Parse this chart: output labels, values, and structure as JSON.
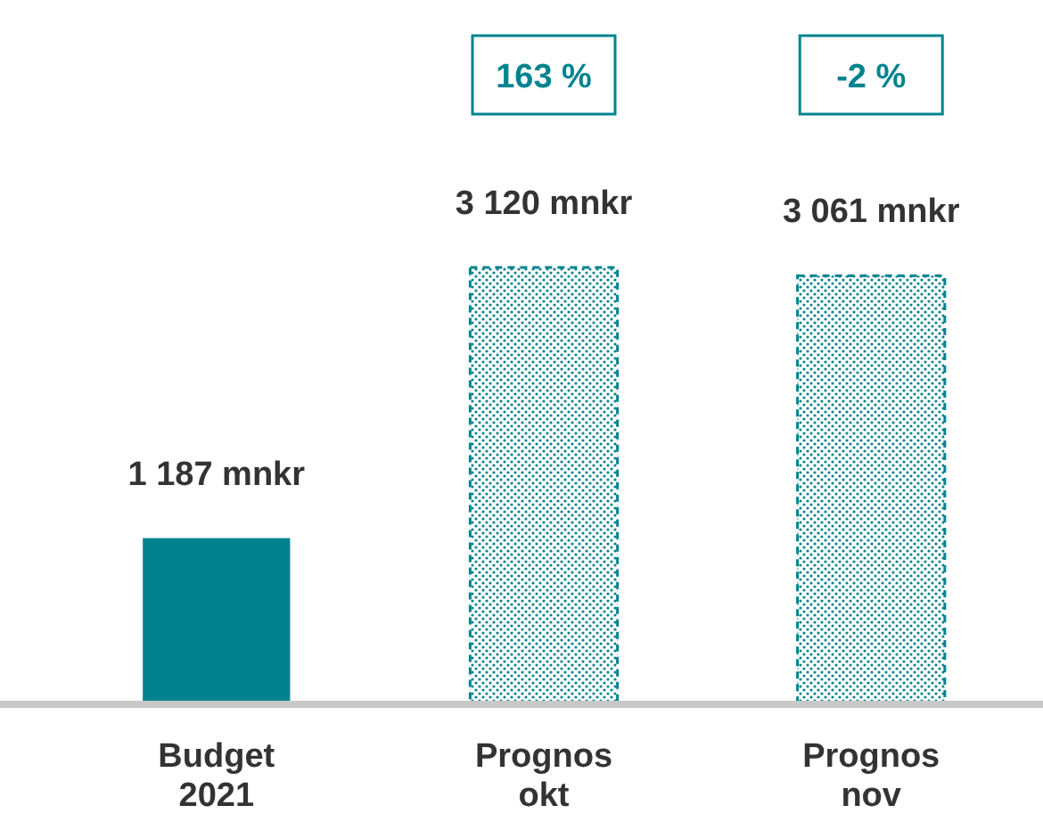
{
  "chart_data": {
    "type": "bar",
    "stacked": true,
    "categories": [
      "Budget 2021",
      "Prognos okt",
      "Prognos nov"
    ],
    "series": [
      {
        "color": "#00838f",
        "values": [
          1187,
          null,
          null
        ],
        "value_labels": [
          "1 187 mnkr",
          null,
          null
        ]
      },
      {
        "color": "#00838f",
        "line_style": "dashed",
        "values": [
          null,
          3120,
          3061
        ],
        "value_labels": [
          null,
          "3 120 mnkr",
          "3 061 mnkr"
        ]
      }
    ],
    "annotations": [
      "163 %",
      "-2 %"
    ]
  }
}
